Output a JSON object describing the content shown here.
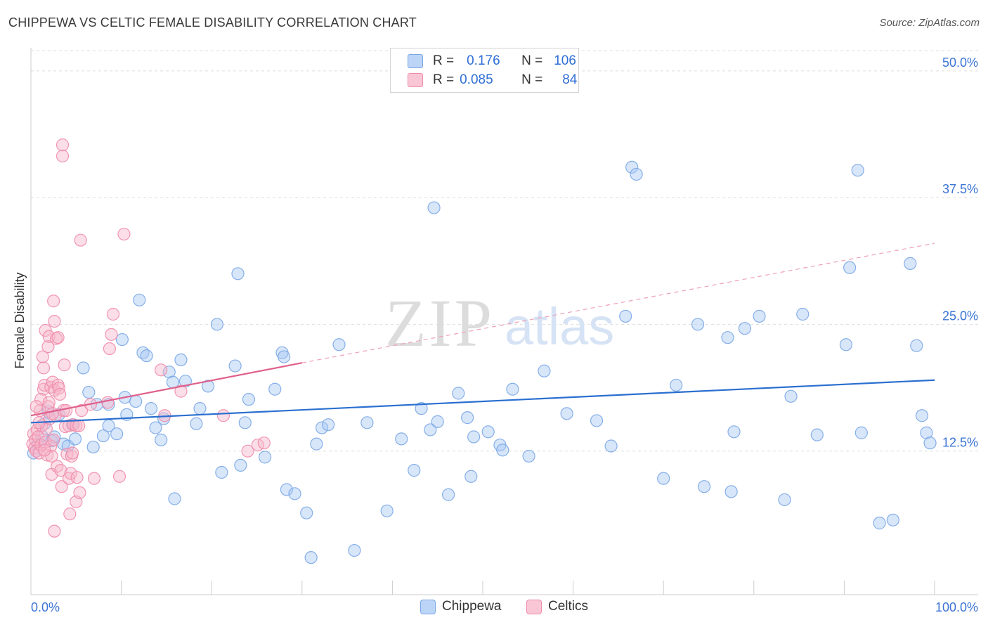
{
  "title": "CHIPPEWA VS CELTIC FEMALE DISABILITY CORRELATION CHART",
  "source": "Source: ZipAtlas.com",
  "watermark": {
    "zip": "ZIP",
    "atlas": "atlas"
  },
  "legend": {
    "rows": [
      {
        "r_label": "R =",
        "r_value": "0.176",
        "n_label": "N =",
        "n_value": "106",
        "color": "#a9c8f3"
      },
      {
        "r_label": "R =",
        "r_value": "0.085",
        "n_label": "N =",
        "n_value": "84",
        "color": "#f7b6c9"
      }
    ]
  },
  "bottom_legend": [
    {
      "label": "Chippewa",
      "color": "#a9c8f3"
    },
    {
      "label": "Celtics",
      "color": "#f7b6c9"
    }
  ],
  "chart_data": {
    "type": "scatter",
    "title": "CHIPPEWA VS CELTIC FEMALE DISABILITY CORRELATION CHART",
    "xlabel": "",
    "ylabel": "Female Disability",
    "xlim": [
      0,
      100
    ],
    "ylim": [
      0,
      52
    ],
    "x_tick_labels": [
      "0.0%",
      "100.0%"
    ],
    "y_ticks": [
      12.5,
      25.0,
      37.5,
      50.0
    ],
    "y_tick_labels": [
      "12.5%",
      "25.0%",
      "37.5%",
      "50.0%"
    ],
    "grid": "horizontal-dashed",
    "series": [
      {
        "name": "Chippewa",
        "color": "#7aa7e6",
        "fill": "#a9c8f3",
        "trend": {
          "x": [
            0,
            100
          ],
          "y": [
            15.3,
            19.5
          ],
          "color": "#2a6fd0",
          "dashed_extension": false
        },
        "points": [
          [
            0.3,
            12.3
          ],
          [
            0.8,
            13.2
          ],
          [
            1.2,
            14.0
          ],
          [
            1.5,
            15.2
          ],
          [
            1.9,
            16.4
          ],
          [
            2.3,
            13.5
          ],
          [
            2.6,
            13.9
          ],
          [
            3.1,
            16.1
          ],
          [
            3.6,
            13.2
          ],
          [
            4.1,
            13.0
          ],
          [
            4.6,
            15.1
          ],
          [
            4.9,
            13.7
          ],
          [
            5.8,
            20.7
          ],
          [
            6.4,
            18.3
          ],
          [
            6.9,
            12.9
          ],
          [
            7.3,
            17.1
          ],
          [
            8.0,
            14.0
          ],
          [
            8.6,
            17.1
          ],
          [
            8.6,
            15.0
          ],
          [
            9.5,
            14.2
          ],
          [
            10.1,
            23.5
          ],
          [
            10.4,
            17.8
          ],
          [
            10.6,
            16.1
          ],
          [
            11.6,
            17.4
          ],
          [
            12.0,
            27.4
          ],
          [
            12.4,
            22.2
          ],
          [
            12.8,
            21.9
          ],
          [
            13.3,
            16.7
          ],
          [
            13.8,
            14.8
          ],
          [
            14.4,
            13.6
          ],
          [
            14.7,
            15.7
          ],
          [
            15.3,
            20.3
          ],
          [
            15.7,
            19.3
          ],
          [
            15.9,
            7.8
          ],
          [
            16.6,
            21.5
          ],
          [
            17.1,
            19.4
          ],
          [
            18.3,
            15.2
          ],
          [
            18.7,
            16.7
          ],
          [
            19.6,
            18.9
          ],
          [
            20.6,
            25.0
          ],
          [
            21.1,
            10.4
          ],
          [
            22.6,
            20.9
          ],
          [
            22.9,
            30.0
          ],
          [
            23.2,
            11.1
          ],
          [
            23.7,
            15.3
          ],
          [
            24.1,
            17.6
          ],
          [
            25.9,
            11.9
          ],
          [
            27.0,
            18.6
          ],
          [
            27.8,
            22.2
          ],
          [
            28.0,
            21.8
          ],
          [
            28.3,
            8.7
          ],
          [
            29.2,
            8.3
          ],
          [
            30.5,
            6.4
          ],
          [
            31.0,
            2.0
          ],
          [
            31.6,
            13.2
          ],
          [
            32.2,
            14.8
          ],
          [
            32.9,
            15.1
          ],
          [
            34.1,
            23.0
          ],
          [
            35.8,
            2.7
          ],
          [
            37.2,
            15.3
          ],
          [
            39.4,
            6.6
          ],
          [
            41.0,
            13.7
          ],
          [
            42.4,
            10.6
          ],
          [
            43.2,
            16.7
          ],
          [
            44.2,
            14.6
          ],
          [
            44.6,
            36.5
          ],
          [
            45.0,
            15.4
          ],
          [
            46.2,
            8.2
          ],
          [
            47.3,
            18.2
          ],
          [
            48.3,
            15.8
          ],
          [
            48.7,
            10.0
          ],
          [
            49.0,
            13.9
          ],
          [
            50.6,
            14.4
          ],
          [
            51.9,
            13.1
          ],
          [
            52.2,
            12.6
          ],
          [
            53.3,
            18.6
          ],
          [
            55.1,
            12.0
          ],
          [
            56.8,
            20.4
          ],
          [
            59.3,
            16.2
          ],
          [
            62.6,
            15.5
          ],
          [
            64.2,
            13.0
          ],
          [
            65.8,
            25.8
          ],
          [
            66.5,
            40.5
          ],
          [
            67.0,
            39.8
          ],
          [
            70.0,
            9.8
          ],
          [
            71.4,
            19.0
          ],
          [
            73.8,
            25.0
          ],
          [
            74.5,
            9.0
          ],
          [
            77.1,
            23.7
          ],
          [
            77.5,
            8.5
          ],
          [
            77.8,
            14.4
          ],
          [
            79.0,
            24.6
          ],
          [
            80.6,
            25.8
          ],
          [
            83.4,
            7.7
          ],
          [
            84.1,
            17.9
          ],
          [
            85.4,
            26.0
          ],
          [
            87.0,
            14.1
          ],
          [
            90.2,
            23.0
          ],
          [
            90.6,
            30.6
          ],
          [
            91.5,
            40.2
          ],
          [
            91.9,
            14.3
          ],
          [
            93.9,
            5.4
          ],
          [
            95.4,
            5.7
          ],
          [
            97.3,
            31.0
          ],
          [
            98.0,
            22.9
          ],
          [
            98.6,
            16.0
          ],
          [
            99.1,
            14.3
          ],
          [
            99.5,
            13.3
          ]
        ]
      },
      {
        "name": "Celtics",
        "color": "#f08cab",
        "fill": "#f7b6c9",
        "trend": {
          "x": [
            0,
            30
          ],
          "y": [
            16.0,
            21.2
          ],
          "color": "#e0608b",
          "dashed_extension_to": [
            100,
            33.0
          ]
        },
        "points": [
          [
            0.2,
            13.2
          ],
          [
            0.3,
            14.2
          ],
          [
            0.4,
            12.8
          ],
          [
            0.5,
            13.6
          ],
          [
            0.6,
            12.5
          ],
          [
            0.7,
            14.6
          ],
          [
            0.8,
            13.9
          ],
          [
            0.9,
            12.3
          ],
          [
            1.0,
            16.5
          ],
          [
            1.1,
            13.1
          ],
          [
            1.2,
            15.0
          ],
          [
            1.3,
            21.8
          ],
          [
            1.4,
            20.7
          ],
          [
            1.4,
            18.6
          ],
          [
            1.5,
            19.0
          ],
          [
            1.6,
            24.4
          ],
          [
            1.6,
            13.4
          ],
          [
            1.7,
            14.7
          ],
          [
            1.8,
            12.1
          ],
          [
            1.9,
            22.8
          ],
          [
            1.9,
            16.9
          ],
          [
            2.0,
            23.8
          ],
          [
            2.1,
            15.7
          ],
          [
            2.2,
            13.0
          ],
          [
            2.2,
            18.8
          ],
          [
            2.3,
            12.0
          ],
          [
            2.3,
            10.2
          ],
          [
            2.4,
            19.3
          ],
          [
            2.5,
            27.3
          ],
          [
            2.5,
            13.6
          ],
          [
            2.6,
            25.3
          ],
          [
            2.6,
            18.5
          ],
          [
            2.6,
            4.6
          ],
          [
            2.7,
            16.0
          ],
          [
            2.8,
            23.6
          ],
          [
            2.9,
            11.0
          ],
          [
            3.0,
            23.7
          ],
          [
            3.0,
            19.0
          ],
          [
            3.1,
            18.7
          ],
          [
            3.2,
            18.1
          ],
          [
            3.3,
            10.6
          ],
          [
            3.4,
            9.0
          ],
          [
            3.5,
            42.7
          ],
          [
            3.5,
            41.6
          ],
          [
            3.6,
            16.5
          ],
          [
            3.7,
            21.0
          ],
          [
            3.8,
            14.9
          ],
          [
            4.0,
            12.2
          ],
          [
            4.2,
            15.0
          ],
          [
            4.2,
            9.8
          ],
          [
            4.3,
            6.3
          ],
          [
            4.4,
            10.3
          ],
          [
            4.5,
            12.0
          ],
          [
            4.6,
            12.3
          ],
          [
            4.7,
            15.1
          ],
          [
            5.0,
            15.0
          ],
          [
            5.0,
            7.5
          ],
          [
            5.1,
            9.9
          ],
          [
            5.3,
            15.0
          ],
          [
            5.4,
            8.4
          ],
          [
            5.5,
            33.3
          ],
          [
            5.6,
            16.5
          ],
          [
            6.6,
            17.1
          ],
          [
            7.0,
            9.8
          ],
          [
            8.5,
            17.3
          ],
          [
            8.7,
            22.6
          ],
          [
            8.9,
            24.0
          ],
          [
            9.1,
            26.0
          ],
          [
            9.8,
            10.0
          ],
          [
            10.3,
            33.9
          ],
          [
            14.4,
            20.5
          ],
          [
            14.8,
            16.0
          ],
          [
            16.6,
            18.4
          ],
          [
            21.3,
            16.0
          ],
          [
            24.0,
            12.5
          ],
          [
            25.1,
            13.1
          ],
          [
            25.8,
            13.3
          ],
          [
            2.4,
            16.2
          ],
          [
            3.9,
            16.5
          ],
          [
            1.1,
            17.6
          ],
          [
            0.9,
            15.3
          ],
          [
            0.6,
            16.9
          ],
          [
            2.0,
            17.3
          ],
          [
            1.5,
            12.6
          ]
        ]
      }
    ]
  }
}
